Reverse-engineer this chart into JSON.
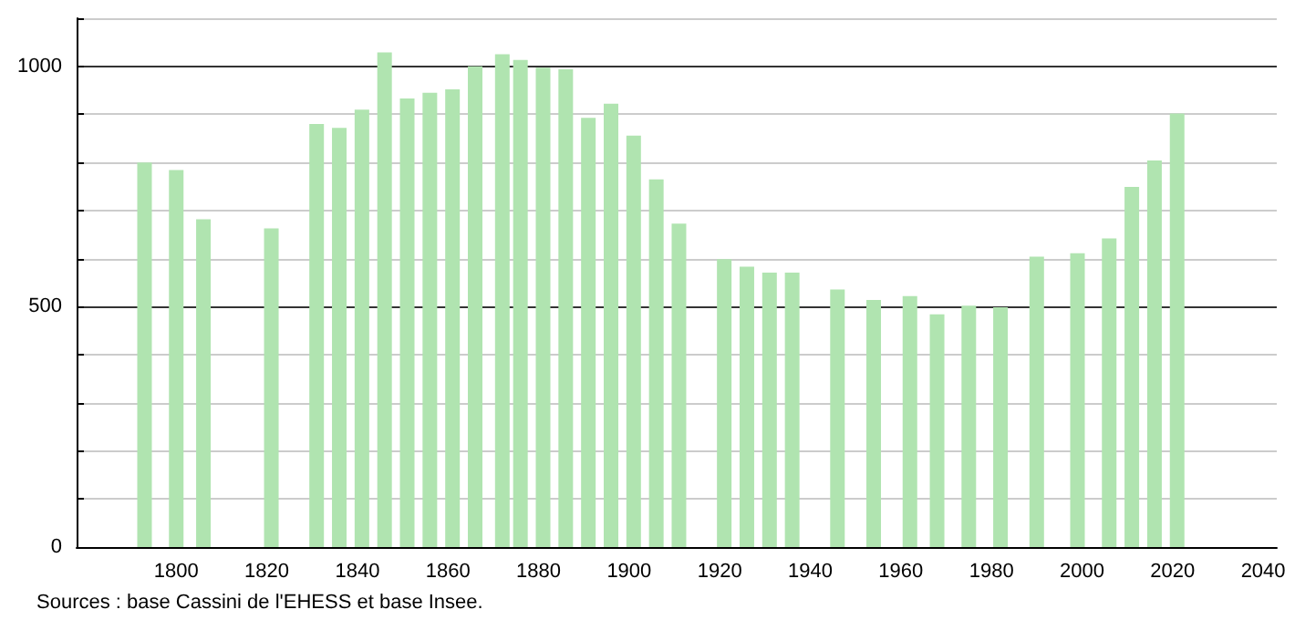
{
  "chart_data": {
    "type": "bar",
    "x": [
      1793,
      1800,
      1806,
      1821,
      1831,
      1836,
      1841,
      1846,
      1851,
      1856,
      1861,
      1866,
      1872,
      1876,
      1881,
      1886,
      1891,
      1896,
      1901,
      1906,
      1911,
      1921,
      1926,
      1931,
      1936,
      1946,
      1954,
      1962,
      1968,
      1975,
      1982,
      1990,
      1999,
      2006,
      2011,
      2016,
      2021
    ],
    "values": [
      800,
      784,
      682,
      663,
      880,
      872,
      910,
      1029,
      933,
      945,
      952,
      1000,
      1025,
      1013,
      997,
      994,
      893,
      922,
      856,
      765,
      673,
      599,
      583,
      571,
      571,
      536,
      514,
      522,
      484,
      502,
      499,
      604,
      611,
      642,
      749,
      804,
      902
    ],
    "color": "#b0e4b0",
    "xlim": [
      1778,
      2043
    ],
    "xticks": [
      1800,
      1820,
      1840,
      1860,
      1880,
      1900,
      1920,
      1940,
      1960,
      1980,
      2000,
      2020,
      2040
    ],
    "ylim": [
      0,
      1100
    ],
    "yticks": [
      0,
      {
        "value": 100,
        "label": null
      },
      {
        "value": 200,
        "label": null
      },
      {
        "value": 300,
        "label": null
      },
      {
        "value": 400,
        "label": null
      },
      500,
      {
        "value": 600,
        "label": null
      },
      {
        "value": 700,
        "label": null
      },
      {
        "value": 800,
        "label": null
      },
      {
        "value": 900,
        "label": null
      },
      1000,
      {
        "value": 1100,
        "label": null
      }
    ],
    "grid": "y",
    "annotations": [
      "Sources : base Cassini de l'EHESS et base Insee."
    ]
  }
}
